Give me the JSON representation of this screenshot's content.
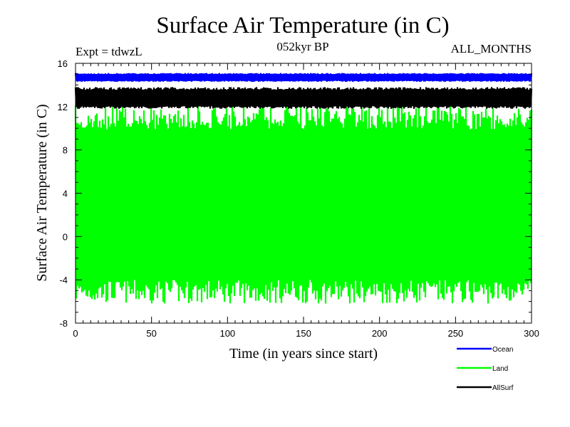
{
  "chart_data": {
    "type": "line",
    "title": "Surface Air Temperature (in C)",
    "subtitle_left": "Expt = tdwzL",
    "subtitle_center": "052kyr BP",
    "subtitle_right": "ALL_MONTHS",
    "xlabel": "Time (in years since start)",
    "ylabel": "Surface Air Temperature (in C)",
    "xlim": [
      0,
      300
    ],
    "ylim": [
      -8,
      16
    ],
    "x_ticks": [
      0,
      50,
      100,
      150,
      200,
      250,
      300
    ],
    "y_ticks": [
      -8,
      -4,
      0,
      4,
      8,
      12,
      16
    ],
    "x_tick_labels": [
      "0",
      "50",
      "100",
      "150",
      "200",
      "250",
      "300"
    ],
    "y_tick_labels": [
      "-8",
      "-4",
      "0",
      "4",
      "8",
      "12",
      "16"
    ],
    "grid": false,
    "legend_position": "bottom-right",
    "series": [
      {
        "name": "Ocean",
        "color": "#0000ff",
        "min": 14.3,
        "max": 15.1
      },
      {
        "name": "Land",
        "color": "#00ff00",
        "min": -6.2,
        "max": 12.1
      },
      {
        "name": "AllSurf",
        "color": "#000000",
        "min": 11.8,
        "max": 13.8
      }
    ]
  }
}
